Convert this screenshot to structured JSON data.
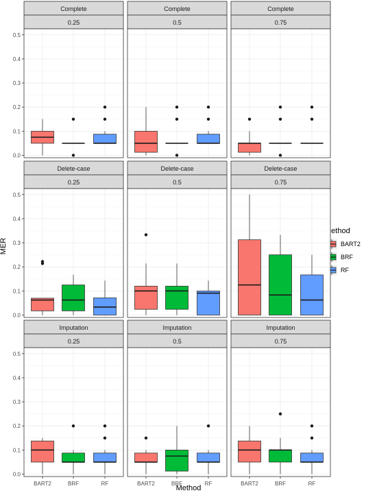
{
  "chart_data": {
    "type": "boxplot",
    "ylabel": "MER",
    "xlabel": "Method",
    "categories": [
      "BART2",
      "BRF",
      "RF"
    ],
    "ylim": [
      -0.01,
      0.525
    ],
    "yticks": [
      0.0,
      0.1,
      0.2,
      0.3,
      0.4,
      0.5
    ],
    "ytick_labels": [
      "0.0",
      "0.1",
      "0.2",
      "0.3",
      "0.4",
      "0.5"
    ],
    "grid": true,
    "legend": {
      "title": "Method",
      "position": "right",
      "entries": [
        "BART2",
        "BRF",
        "RF"
      ]
    },
    "colors": {
      "BART2": "#F8766D",
      "BRF": "#00BA38",
      "RF": "#619CFF"
    },
    "row_strips": [
      "Complete",
      "Delete-case",
      "Imputation"
    ],
    "col_strips": [
      "0.25",
      "0.5",
      "0.75"
    ],
    "panels": [
      {
        "row": "Complete",
        "col": "0.25",
        "boxes": [
          {
            "method": "BART2",
            "lower": 0.0,
            "q1": 0.05,
            "median": 0.075,
            "q3": 0.1,
            "upper": 0.15,
            "outliers": []
          },
          {
            "method": "BRF",
            "lower": 0.05,
            "q1": 0.05,
            "median": 0.05,
            "q3": 0.05,
            "upper": 0.05,
            "outliers": [
              0.0,
              0.15
            ]
          },
          {
            "method": "RF",
            "lower": 0.05,
            "q1": 0.05,
            "median": 0.05,
            "q3": 0.0875,
            "upper": 0.1,
            "outliers": [
              0.15,
              0.2
            ]
          }
        ]
      },
      {
        "row": "Complete",
        "col": "0.5",
        "boxes": [
          {
            "method": "BART2",
            "lower": 0.0,
            "q1": 0.0125,
            "median": 0.05,
            "q3": 0.1,
            "upper": 0.2,
            "outliers": []
          },
          {
            "method": "BRF",
            "lower": 0.05,
            "q1": 0.05,
            "median": 0.05,
            "q3": 0.05,
            "upper": 0.05,
            "outliers": [
              0.0,
              0.15,
              0.2
            ]
          },
          {
            "method": "RF",
            "lower": 0.05,
            "q1": 0.05,
            "median": 0.05,
            "q3": 0.0875,
            "upper": 0.1,
            "outliers": [
              0.15,
              0.2
            ]
          }
        ]
      },
      {
        "row": "Complete",
        "col": "0.75",
        "boxes": [
          {
            "method": "BART2",
            "lower": 0.0,
            "q1": 0.0125,
            "median": 0.05,
            "q3": 0.05,
            "upper": 0.1,
            "outliers": [
              0.15
            ]
          },
          {
            "method": "BRF",
            "lower": 0.05,
            "q1": 0.05,
            "median": 0.05,
            "q3": 0.05,
            "upper": 0.05,
            "outliers": [
              0.0,
              0.15,
              0.2
            ]
          },
          {
            "method": "RF",
            "lower": 0.05,
            "q1": 0.05,
            "median": 0.05,
            "q3": 0.05,
            "upper": 0.05,
            "outliers": [
              0.15,
              0.2
            ]
          }
        ]
      },
      {
        "row": "Delete-case",
        "col": "0.25",
        "boxes": [
          {
            "method": "BART2",
            "lower": 0.0,
            "q1": 0.0175,
            "median": 0.0625,
            "q3": 0.07,
            "upper": 0.07,
            "outliers": [
              0.214,
              0.222
            ]
          },
          {
            "method": "BRF",
            "lower": 0.0,
            "q1": 0.0175,
            "median": 0.0625,
            "q3": 0.125,
            "upper": 0.167,
            "outliers": []
          },
          {
            "method": "RF",
            "lower": 0.0,
            "q1": 0.0,
            "median": 0.0333,
            "q3": 0.0714,
            "upper": 0.143,
            "outliers": []
          }
        ]
      },
      {
        "row": "Delete-case",
        "col": "0.5",
        "boxes": [
          {
            "method": "BART2",
            "lower": 0.0,
            "q1": 0.0238,
            "median": 0.1,
            "q3": 0.12,
            "upper": 0.214,
            "outliers": [
              0.333
            ]
          },
          {
            "method": "BRF",
            "lower": 0.0,
            "q1": 0.0238,
            "median": 0.1,
            "q3": 0.12,
            "upper": 0.214,
            "outliers": []
          },
          {
            "method": "RF",
            "lower": 0.0,
            "q1": 0.0,
            "median": 0.0909,
            "q3": 0.1,
            "upper": 0.143,
            "outliers": []
          }
        ]
      },
      {
        "row": "Delete-case",
        "col": "0.75",
        "boxes": [
          {
            "method": "BART2",
            "lower": 0.0,
            "q1": 0.0,
            "median": 0.125,
            "q3": 0.3125,
            "upper": 0.5,
            "outliers": []
          },
          {
            "method": "BRF",
            "lower": 0.0,
            "q1": 0.0,
            "median": 0.0833,
            "q3": 0.25,
            "upper": 0.333,
            "outliers": []
          },
          {
            "method": "RF",
            "lower": 0.0,
            "q1": 0.0,
            "median": 0.0625,
            "q3": 0.1667,
            "upper": 0.25,
            "outliers": []
          }
        ]
      },
      {
        "row": "Imputation",
        "col": "0.25",
        "boxes": [
          {
            "method": "BART2",
            "lower": 0.0,
            "q1": 0.05,
            "median": 0.1,
            "q3": 0.1375,
            "upper": 0.15,
            "outliers": []
          },
          {
            "method": "BRF",
            "lower": 0.0,
            "q1": 0.05,
            "median": 0.05,
            "q3": 0.0875,
            "upper": 0.1,
            "outliers": [
              0.2
            ]
          },
          {
            "method": "RF",
            "lower": 0.0,
            "q1": 0.05,
            "median": 0.05,
            "q3": 0.0875,
            "upper": 0.1,
            "outliers": [
              0.15,
              0.2
            ]
          }
        ]
      },
      {
        "row": "Imputation",
        "col": "0.5",
        "boxes": [
          {
            "method": "BART2",
            "lower": 0.0,
            "q1": 0.05,
            "median": 0.05,
            "q3": 0.0875,
            "upper": 0.1,
            "outliers": [
              0.15
            ]
          },
          {
            "method": "BRF",
            "lower": 0.0,
            "q1": 0.0125,
            "median": 0.075,
            "q3": 0.1,
            "upper": 0.2,
            "outliers": []
          },
          {
            "method": "RF",
            "lower": 0.0,
            "q1": 0.05,
            "median": 0.05,
            "q3": 0.0875,
            "upper": 0.1,
            "outliers": [
              0.2
            ]
          }
        ]
      },
      {
        "row": "Imputation",
        "col": "0.75",
        "boxes": [
          {
            "method": "BART2",
            "lower": 0.0,
            "q1": 0.05,
            "median": 0.1,
            "q3": 0.1375,
            "upper": 0.2,
            "outliers": []
          },
          {
            "method": "BRF",
            "lower": 0.0,
            "q1": 0.05,
            "median": 0.1,
            "q3": 0.1,
            "upper": 0.15,
            "outliers": [
              0.25
            ]
          },
          {
            "method": "RF",
            "lower": 0.0,
            "q1": 0.05,
            "median": 0.05,
            "q3": 0.0875,
            "upper": 0.1,
            "outliers": [
              0.15,
              0.2
            ]
          }
        ]
      }
    ]
  }
}
